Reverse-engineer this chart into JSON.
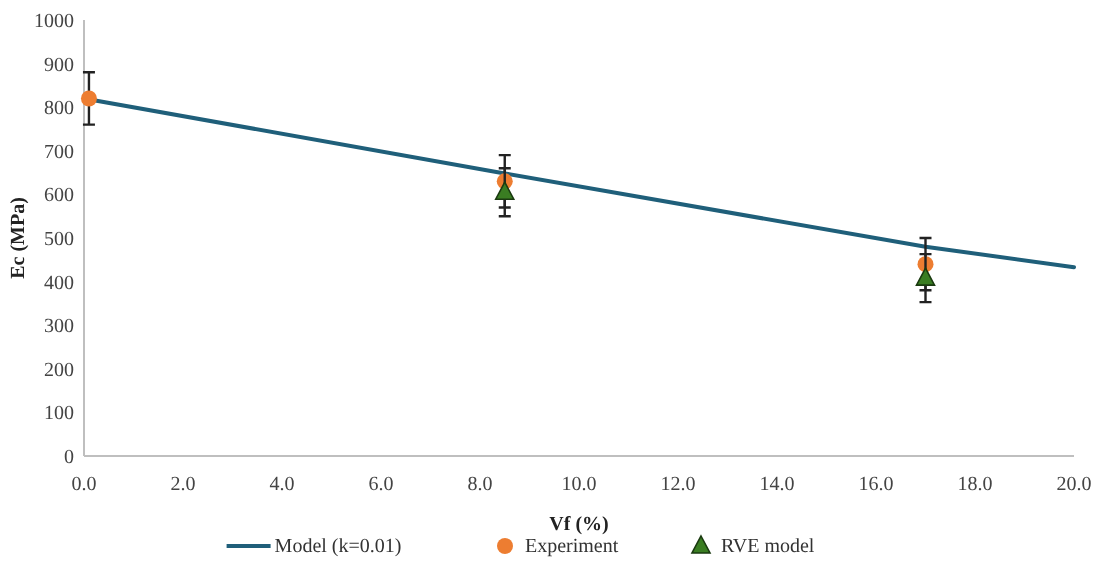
{
  "chart_data": {
    "type": "scatter",
    "xlabel": "Vf (%)",
    "ylabel": "Ec (MPa)",
    "xlim": [
      0,
      20
    ],
    "ylim": [
      0,
      1000
    ],
    "xticks": [
      {
        "value": 0,
        "label": "0.0"
      },
      {
        "value": 2,
        "label": "2.0"
      },
      {
        "value": 4,
        "label": "4.0"
      },
      {
        "value": 6,
        "label": "6.0"
      },
      {
        "value": 8,
        "label": "8.0"
      },
      {
        "value": 10,
        "label": "10.0"
      },
      {
        "value": 12,
        "label": "12.0"
      },
      {
        "value": 14,
        "label": "14.0"
      },
      {
        "value": 16,
        "label": "16.0"
      },
      {
        "value": 18,
        "label": "18.0"
      },
      {
        "value": 20,
        "label": "20.0"
      }
    ],
    "yticks": [
      0,
      100,
      200,
      300,
      400,
      500,
      600,
      700,
      800,
      900,
      1000
    ],
    "grid": false,
    "legend": "bottom",
    "series": [
      {
        "name": "Model (k=0.01)",
        "type": "line",
        "color": "#1f5f7a",
        "marker": "none",
        "line_style": "solid",
        "x": [
          0,
          8.5,
          17,
          20
        ],
        "values": [
          820,
          648,
          480,
          433
        ]
      },
      {
        "name": "Experiment",
        "color": "#ed7d31",
        "marker": "circle",
        "x": [
          0.1,
          8.5,
          17
        ],
        "values": [
          820,
          630,
          440
        ],
        "errors": [
          60,
          60,
          60
        ]
      },
      {
        "name": "RVE model",
        "color": "#3a7d22",
        "marker": "triangle",
        "x": [
          8.5,
          17
        ],
        "values": [
          605,
          408
        ],
        "errors": [
          55,
          55
        ]
      }
    ]
  }
}
